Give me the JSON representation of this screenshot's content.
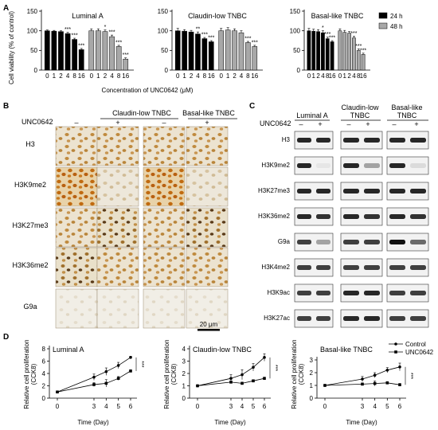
{
  "panel_labels": {
    "a": "A",
    "b": "B",
    "c": "C",
    "d": "D"
  },
  "panel_a": {
    "legend": [
      "24 h",
      "48 h"
    ],
    "legend_colors": [
      "#000000",
      "#a8a8a8"
    ],
    "ylabel": "Cell viability (% of control)",
    "xlabel": "Concentration of UNC0642 (μM)"
  },
  "panel_b": {
    "groups": [
      "Claudin-low TNBC",
      "Basal-like TNBC"
    ],
    "treatment_label": "UNC0642",
    "conditions": [
      "–",
      "+",
      "–",
      "+"
    ],
    "rows": [
      "H3",
      "H3K9me2",
      "H3K27me3",
      "H3K36me2",
      "G9a"
    ],
    "scale_bar": "20 μm"
  },
  "panel_c": {
    "groups": [
      "Luminal A",
      "Claudin-low\nTNBC",
      "Basal-like\nTNBC"
    ],
    "treatment_label": "UNC0642",
    "conditions": [
      "–",
      "+"
    ],
    "rows": [
      "H3",
      "H3K9me2",
      "H3K27me3",
      "H3K36me2",
      "G9a",
      "H3K4me2",
      "H3K9ac",
      "H3K27ac"
    ]
  },
  "panel_d": {
    "legend": [
      "Control",
      "UNC0642"
    ],
    "ylabel": "Relative cell proliferation\n(CCK8)",
    "xlabel": "Time (Day)"
  },
  "chart_data": [
    {
      "type": "bar",
      "title": "Luminal A",
      "categories": [
        "0",
        "1",
        "2",
        "4",
        "8",
        "16"
      ],
      "ylim": [
        0,
        150
      ],
      "yticks": [
        0,
        50,
        100,
        150
      ],
      "series": [
        {
          "name": "24 h",
          "values": [
            100,
            99,
            98,
            93,
            78,
            52
          ],
          "errors": [
            2,
            2,
            2,
            3,
            3,
            3
          ],
          "marks": [
            "",
            "",
            "",
            "***",
            "***",
            "***"
          ]
        },
        {
          "name": "48 h",
          "values": [
            100,
            100,
            98,
            85,
            60,
            28
          ],
          "errors": [
            5,
            5,
            4,
            4,
            3,
            3
          ],
          "marks": [
            "",
            "",
            "*",
            "***",
            "***",
            "***"
          ]
        }
      ]
    },
    {
      "type": "bar",
      "title": "Claudin-low TNBC",
      "categories": [
        "0",
        "1",
        "2",
        "4",
        "8",
        "16"
      ],
      "ylim": [
        0,
        150
      ],
      "yticks": [
        0,
        50,
        100,
        150
      ],
      "series": [
        {
          "name": "24 h",
          "values": [
            100,
            99,
            97,
            92,
            80,
            72
          ],
          "errors": [
            6,
            4,
            4,
            5,
            3,
            3
          ],
          "marks": [
            "",
            "",
            "",
            "**",
            "***",
            "***"
          ]
        },
        {
          "name": "48 h",
          "values": [
            100,
            102,
            100,
            95,
            70,
            60
          ],
          "errors": [
            6,
            6,
            5,
            5,
            3,
            3
          ],
          "marks": [
            "",
            "",
            "",
            "",
            "***",
            "***"
          ]
        }
      ]
    },
    {
      "type": "bar",
      "title": "Basal-like TNBC",
      "categories": [
        "0",
        "1",
        "2",
        "4",
        "8",
        "16"
      ],
      "ylim": [
        0,
        150
      ],
      "yticks": [
        0,
        50,
        100,
        150
      ],
      "series": [
        {
          "name": "24 h",
          "values": [
            100,
            99,
            98,
            95,
            80,
            72
          ],
          "errors": [
            6,
            5,
            5,
            5,
            4,
            3
          ],
          "marks": [
            "",
            "",
            "",
            "*",
            "***",
            "***"
          ]
        },
        {
          "name": "48 h",
          "values": [
            100,
            96,
            94,
            82,
            50,
            40
          ],
          "errors": [
            5,
            5,
            4,
            4,
            4,
            3
          ],
          "marks": [
            "",
            "",
            "",
            "***",
            "***",
            "***"
          ]
        }
      ]
    },
    {
      "type": "line",
      "title": "Luminal A",
      "x": [
        0,
        3,
        4,
        5,
        6
      ],
      "ylim": [
        0,
        8
      ],
      "yticks": [
        0,
        2,
        4,
        6,
        8
      ],
      "annotation": "***",
      "series": [
        {
          "name": "Control",
          "values": [
            1.0,
            3.4,
            4.3,
            5.3,
            6.6
          ],
          "errors": [
            0.1,
            0.5,
            0.6,
            0.5,
            0.2
          ]
        },
        {
          "name": "UNC0642",
          "values": [
            1.0,
            2.2,
            2.4,
            3.2,
            4.4
          ],
          "errors": [
            0.1,
            0.3,
            0.6,
            0.3,
            0.2
          ]
        }
      ]
    },
    {
      "type": "line",
      "title": "Claudin-low TNBC",
      "x": [
        0,
        3,
        4,
        5,
        6
      ],
      "ylim": [
        0,
        4
      ],
      "yticks": [
        0,
        1,
        2,
        3,
        4
      ],
      "annotation": "***",
      "series": [
        {
          "name": "Control",
          "values": [
            1.0,
            1.6,
            1.9,
            2.5,
            3.3
          ],
          "errors": [
            0.05,
            0.3,
            0.4,
            0.3,
            0.3
          ]
        },
        {
          "name": "UNC0642",
          "values": [
            1.0,
            1.3,
            1.2,
            1.4,
            1.6
          ],
          "errors": [
            0.05,
            0.1,
            0.1,
            0.1,
            0.1
          ]
        }
      ]
    },
    {
      "type": "line",
      "title": "Basal-like TNBC",
      "x": [
        0,
        3,
        4,
        5,
        6
      ],
      "ylim": [
        0,
        3
      ],
      "yticks": [
        0,
        1,
        2,
        3
      ],
      "annotation": "***",
      "series": [
        {
          "name": "Control",
          "values": [
            1.0,
            1.5,
            1.8,
            2.2,
            2.45
          ],
          "errors": [
            0.05,
            0.2,
            0.2,
            0.2,
            0.3
          ]
        },
        {
          "name": "UNC0642",
          "values": [
            1.0,
            1.1,
            1.15,
            1.2,
            1.05
          ],
          "errors": [
            0.05,
            0.1,
            0.2,
            0.1,
            0.1
          ]
        }
      ]
    }
  ]
}
